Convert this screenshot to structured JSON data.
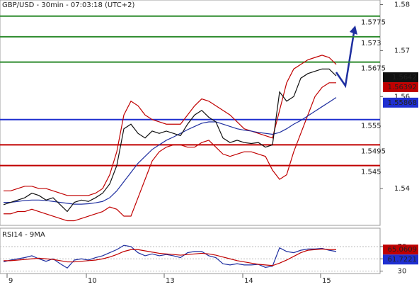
{
  "chart_data": [
    {
      "type": "line",
      "title": "GBP/USD - 30min - 07:03:18 (UTC+2)",
      "x": [
        0,
        1,
        2,
        3,
        4,
        5,
        6,
        7,
        8,
        9,
        10,
        11,
        12,
        13,
        14,
        15,
        16,
        17,
        18,
        19,
        20,
        21,
        22,
        23,
        24,
        25,
        26,
        27,
        28,
        29,
        30,
        31,
        32,
        33,
        34,
        35,
        36,
        37,
        38,
        39,
        40,
        41,
        42,
        43,
        44,
        45,
        46,
        47
      ],
      "xlim": [
        -0.5,
        53.2
      ],
      "ylim": [
        1.532,
        1.581
      ],
      "yticks": [
        1.54,
        1.56,
        1.57,
        1.58
      ],
      "series": [
        {
          "color": "#c00000",
          "values": [
            1.5395,
            1.5395,
            1.54,
            1.5405,
            1.5405,
            1.54,
            1.54,
            1.5395,
            1.539,
            1.5385,
            1.5385,
            1.5385,
            1.5385,
            1.539,
            1.54,
            1.543,
            1.548,
            1.556,
            1.559,
            1.558,
            1.556,
            1.555,
            1.5545,
            1.554,
            1.554,
            1.554,
            1.556,
            1.558,
            1.5595,
            1.559,
            1.558,
            1.557,
            1.556,
            1.5545,
            1.553,
            1.5525,
            1.552,
            1.5515,
            1.551,
            1.557,
            1.563,
            1.566,
            1.567,
            1.568,
            1.5685,
            1.569,
            1.5685,
            1.567
          ]
        },
        {
          "color": "#c00000",
          "values": [
            1.5345,
            1.5345,
            1.535,
            1.535,
            1.5355,
            1.535,
            1.5345,
            1.534,
            1.5335,
            1.533,
            1.533,
            1.5335,
            1.534,
            1.5345,
            1.535,
            1.536,
            1.5355,
            1.534,
            1.534,
            1.538,
            1.542,
            1.546,
            1.548,
            1.549,
            1.5495,
            1.5495,
            1.549,
            1.549,
            1.55,
            1.5505,
            1.549,
            1.5475,
            1.547,
            1.5475,
            1.548,
            1.548,
            1.5475,
            1.547,
            1.544,
            1.542,
            1.543,
            1.548,
            1.552,
            1.556,
            1.56,
            1.562,
            1.563,
            1.563
          ]
        },
        {
          "color": "#1f2fa0",
          "values": [
            1.537,
            1.537,
            1.5372,
            1.5374,
            1.5375,
            1.5375,
            1.5374,
            1.5372,
            1.537,
            1.5368,
            1.5366,
            1.5366,
            1.5367,
            1.5369,
            1.5372,
            1.538,
            1.5395,
            1.5415,
            1.5435,
            1.5455,
            1.547,
            1.5485,
            1.5495,
            1.5505,
            1.5512,
            1.552,
            1.5528,
            1.5535,
            1.5542,
            1.5545,
            1.5545,
            1.554,
            1.5535,
            1.553,
            1.5527,
            1.5525,
            1.5522,
            1.552,
            1.5518,
            1.5522,
            1.553,
            1.554,
            1.5548,
            1.5558,
            1.5568,
            1.5578,
            1.5588,
            1.5598
          ]
        },
        {
          "color": "#111111",
          "values": [
            1.5365,
            1.537,
            1.5375,
            1.538,
            1.539,
            1.5385,
            1.5375,
            1.538,
            1.5365,
            1.535,
            1.537,
            1.5375,
            1.5372,
            1.538,
            1.539,
            1.541,
            1.545,
            1.553,
            1.554,
            1.552,
            1.551,
            1.5525,
            1.552,
            1.5525,
            1.552,
            1.5515,
            1.554,
            1.556,
            1.557,
            1.5555,
            1.5545,
            1.551,
            1.55,
            1.5505,
            1.55,
            1.5498,
            1.55,
            1.549,
            1.5495,
            1.561,
            1.559,
            1.56,
            1.564,
            1.565,
            1.5655,
            1.566,
            1.566,
            1.5645
          ]
        }
      ],
      "levels": [
        {
          "value": 1.5775,
          "color": "#2e8b2e"
        },
        {
          "value": 1.573,
          "color": "#2e8b2e"
        },
        {
          "value": 1.5675,
          "color": "#2e8b2e"
        },
        {
          "value": 1.555,
          "color": "#1f2fd0"
        },
        {
          "value": 1.5495,
          "color": "#c00000"
        },
        {
          "value": 1.545,
          "color": "#c00000"
        }
      ],
      "price_labels": [
        {
          "value": 1.5642,
          "color": "#111111"
        },
        {
          "value": 1.56392,
          "color": "#c00000"
        },
        {
          "value": 1.55868,
          "color": "#1f2fd0"
        }
      ]
    },
    {
      "type": "line",
      "title": "RSI14 - 9MA",
      "x": [
        0,
        1,
        2,
        3,
        4,
        5,
        6,
        7,
        8,
        9,
        10,
        11,
        12,
        13,
        14,
        15,
        16,
        17,
        18,
        19,
        20,
        21,
        22,
        23,
        24,
        25,
        26,
        27,
        28,
        29,
        30,
        31,
        32,
        33,
        34,
        35,
        36,
        37,
        38,
        39,
        40,
        41,
        42,
        43,
        44,
        45,
        46,
        47
      ],
      "xlim": [
        -0.5,
        53.2
      ],
      "xticks": [
        {
          "value": 0.5,
          "label": "9"
        },
        {
          "value": 11.7,
          "label": "10"
        },
        {
          "value": 22.7,
          "label": "13"
        },
        {
          "value": 33.8,
          "label": "14"
        },
        {
          "value": 44.8,
          "label": "15"
        }
      ],
      "ylim": [
        26,
        100
      ],
      "yticks": [
        30,
        50,
        70
      ],
      "grid": true,
      "series": [
        {
          "color": "#1f2fa0",
          "values": [
            45,
            48,
            50,
            52,
            55,
            50,
            46,
            50,
            42,
            35,
            48,
            50,
            48,
            52,
            55,
            60,
            65,
            72,
            70,
            60,
            55,
            58,
            55,
            57,
            55,
            52,
            60,
            62,
            62,
            55,
            52,
            42,
            40,
            42,
            40,
            40,
            41,
            36,
            38,
            68,
            62,
            60,
            64,
            66,
            66,
            67,
            64,
            62
          ]
        },
        {
          "color": "#c00000",
          "values": [
            47,
            47,
            48,
            49,
            50,
            51,
            50,
            49,
            47,
            45,
            45,
            46,
            47,
            48,
            50,
            53,
            57,
            62,
            65,
            65,
            63,
            61,
            59,
            58,
            57,
            56,
            57,
            58,
            59,
            58,
            56,
            53,
            50,
            47,
            45,
            43,
            41,
            40,
            39,
            43,
            48,
            54,
            60,
            64,
            65,
            66,
            65,
            65
          ]
        }
      ],
      "price_labels": [
        {
          "value": 65.0609,
          "color": "#c00000"
        },
        {
          "value": 61.7221,
          "color": "#1f2fd0"
        }
      ]
    }
  ]
}
